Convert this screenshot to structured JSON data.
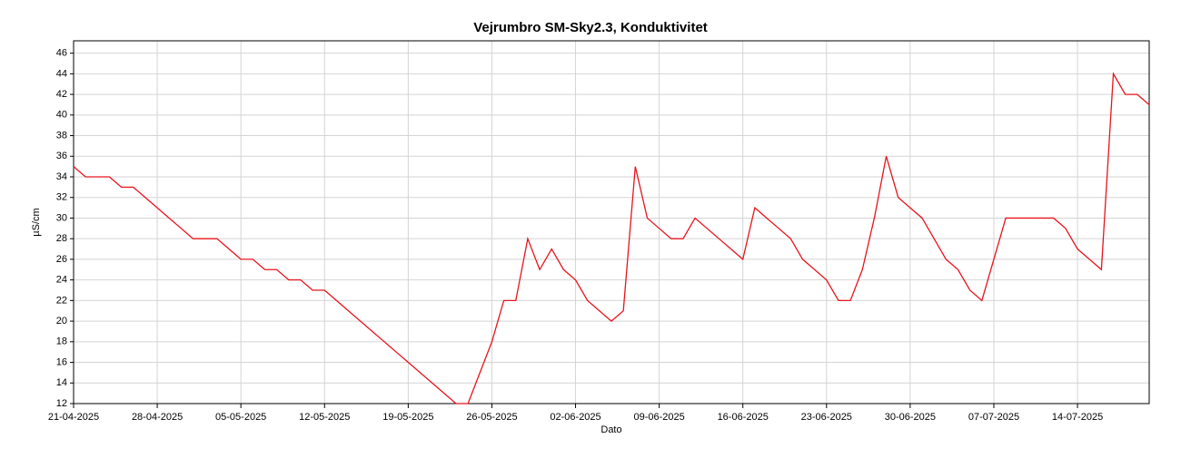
{
  "chart_data": {
    "type": "line",
    "title": "Vejrumbro SM-Sky2.3, Konduktivitet",
    "x_label": "Dato",
    "y_label": "µS/cm",
    "x": [
      "21-04-2025",
      "22-04-2025",
      "23-04-2025",
      "24-04-2025",
      "25-04-2025",
      "26-04-2025",
      "27-04-2025",
      "28-04-2025",
      "29-04-2025",
      "30-04-2025",
      "01-05-2025",
      "02-05-2025",
      "03-05-2025",
      "04-05-2025",
      "05-05-2025",
      "06-05-2025",
      "07-05-2025",
      "08-05-2025",
      "09-05-2025",
      "10-05-2025",
      "11-05-2025",
      "12-05-2025",
      "13-05-2025",
      "14-05-2025",
      "15-05-2025",
      "16-05-2025",
      "17-05-2025",
      "18-05-2025",
      "19-05-2025",
      "20-05-2025",
      "21-05-2025",
      "22-05-2025",
      "23-05-2025",
      "24-05-2025",
      "25-05-2025",
      "26-05-2025",
      "27-05-2025",
      "28-05-2025",
      "29-05-2025",
      "30-05-2025",
      "31-05-2025",
      "01-06-2025",
      "02-06-2025",
      "03-06-2025",
      "04-06-2025",
      "05-06-2025",
      "06-06-2025",
      "07-06-2025",
      "08-06-2025",
      "09-06-2025",
      "10-06-2025",
      "11-06-2025",
      "12-06-2025",
      "13-06-2025",
      "14-06-2025",
      "15-06-2025",
      "16-06-2025",
      "17-06-2025",
      "18-06-2025",
      "19-06-2025",
      "20-06-2025",
      "21-06-2025",
      "22-06-2025",
      "23-06-2025",
      "24-06-2025",
      "25-06-2025",
      "26-06-2025",
      "27-06-2025",
      "28-06-2025",
      "29-06-2025",
      "30-06-2025",
      "01-07-2025",
      "02-07-2025",
      "03-07-2025",
      "04-07-2025",
      "05-07-2025",
      "06-07-2025",
      "07-07-2025",
      "08-07-2025",
      "09-07-2025",
      "10-07-2025",
      "11-07-2025",
      "12-07-2025",
      "13-07-2025",
      "14-07-2025",
      "15-07-2025",
      "16-07-2025",
      "17-07-2025",
      "18-07-2025",
      "19-07-2025",
      "20-07-2025"
    ],
    "series": [
      {
        "name": "Konduktivitet",
        "color": "#e8141c",
        "values": [
          35,
          34,
          34,
          34,
          33,
          33,
          32,
          31,
          30,
          29,
          28,
          28,
          28,
          27,
          26,
          26,
          25,
          25,
          24,
          24,
          23,
          23,
          22,
          21,
          20,
          19,
          18,
          17,
          16,
          15,
          14,
          13,
          12,
          12,
          15,
          18,
          22,
          22,
          28,
          25,
          27,
          25,
          24,
          22,
          21,
          20,
          21,
          35,
          30,
          29,
          28,
          28,
          30,
          29,
          28,
          27,
          26,
          31,
          30,
          29,
          28,
          26,
          25,
          24,
          22,
          22,
          25,
          30,
          36,
          32,
          31,
          30,
          28,
          26,
          25,
          23,
          22,
          26,
          30,
          30,
          30,
          30,
          30,
          29,
          27,
          26,
          25,
          44,
          42,
          42,
          41
        ]
      }
    ],
    "xlim": [
      "21-04-2025",
      "20-07-2025"
    ],
    "xticks": [
      "21-04-2025",
      "28-04-2025",
      "05-05-2025",
      "12-05-2025",
      "19-05-2025",
      "26-05-2025",
      "02-06-2025",
      "09-06-2025",
      "16-06-2025",
      "23-06-2025",
      "30-06-2025",
      "07-07-2025",
      "14-07-2025"
    ],
    "ylim": [
      12,
      47.2
    ],
    "yticks": [
      12,
      14,
      16,
      18,
      20,
      22,
      24,
      26,
      28,
      30,
      32,
      34,
      36,
      38,
      40,
      42,
      44,
      46
    ],
    "grid": true
  }
}
